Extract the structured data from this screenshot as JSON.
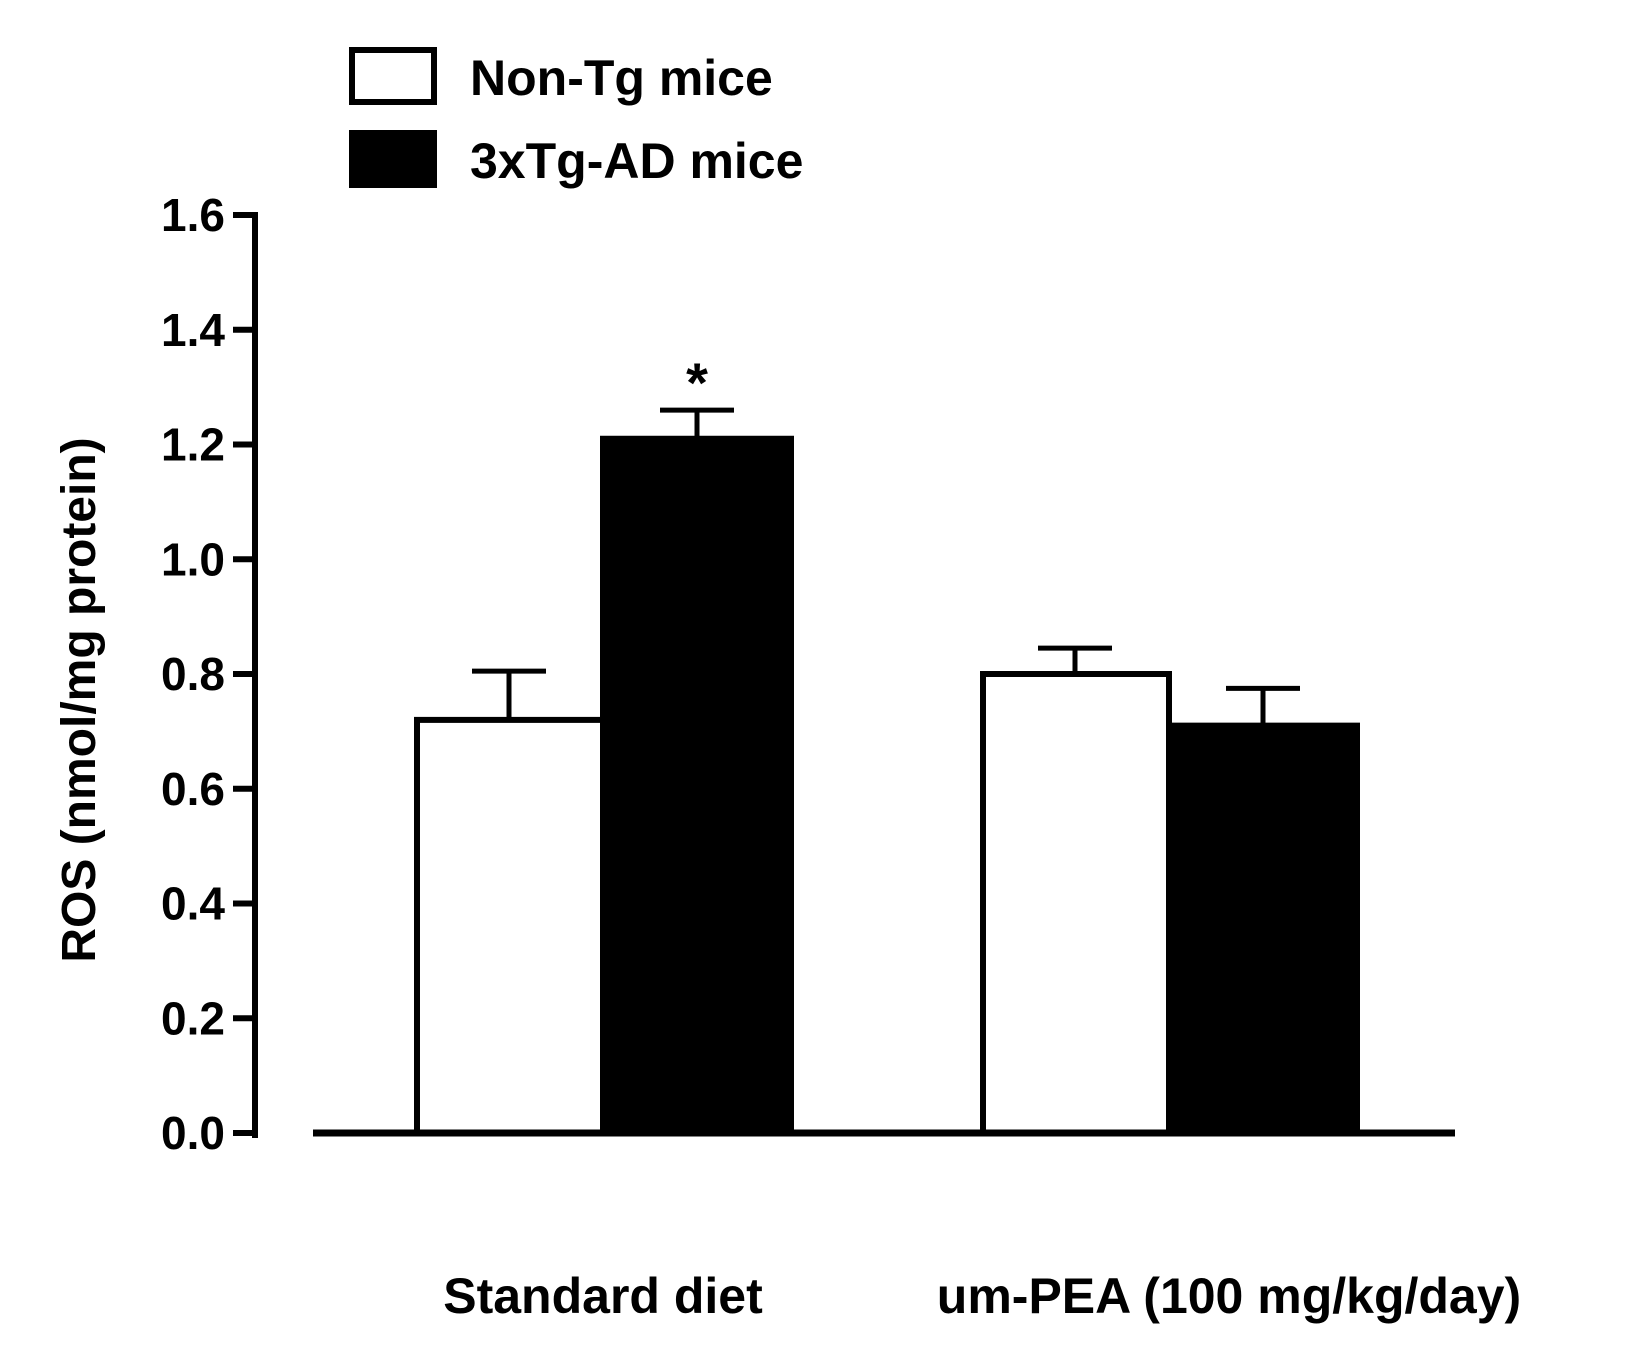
{
  "chart_data": {
    "type": "bar",
    "title": "",
    "ylabel": "ROS (nmol/mg protein)",
    "xlabel": "",
    "ylim": [
      0,
      1.6
    ],
    "yticks": [
      "0.0",
      "0.2",
      "0.4",
      "0.6",
      "0.8",
      "1.0",
      "1.2",
      "1.4",
      "1.6"
    ],
    "categories": [
      "Standard diet",
      "um-PEA (100 mg/kg/day)"
    ],
    "series": [
      {
        "name": "Non-Tg mice",
        "fill": "#ffffff",
        "values": [
          0.72,
          0.8
        ],
        "errors": [
          0.085,
          0.045
        ],
        "annotations": [
          "",
          ""
        ]
      },
      {
        "name": "3xTg-AD mice",
        "fill": "#000000",
        "values": [
          1.21,
          0.71
        ],
        "errors": [
          0.05,
          0.065
        ],
        "annotations": [
          "*",
          ""
        ]
      }
    ],
    "legend_position": "top-left",
    "grid": false
  },
  "colors": {
    "axis": "#000000",
    "bar_outline": "#000000"
  }
}
